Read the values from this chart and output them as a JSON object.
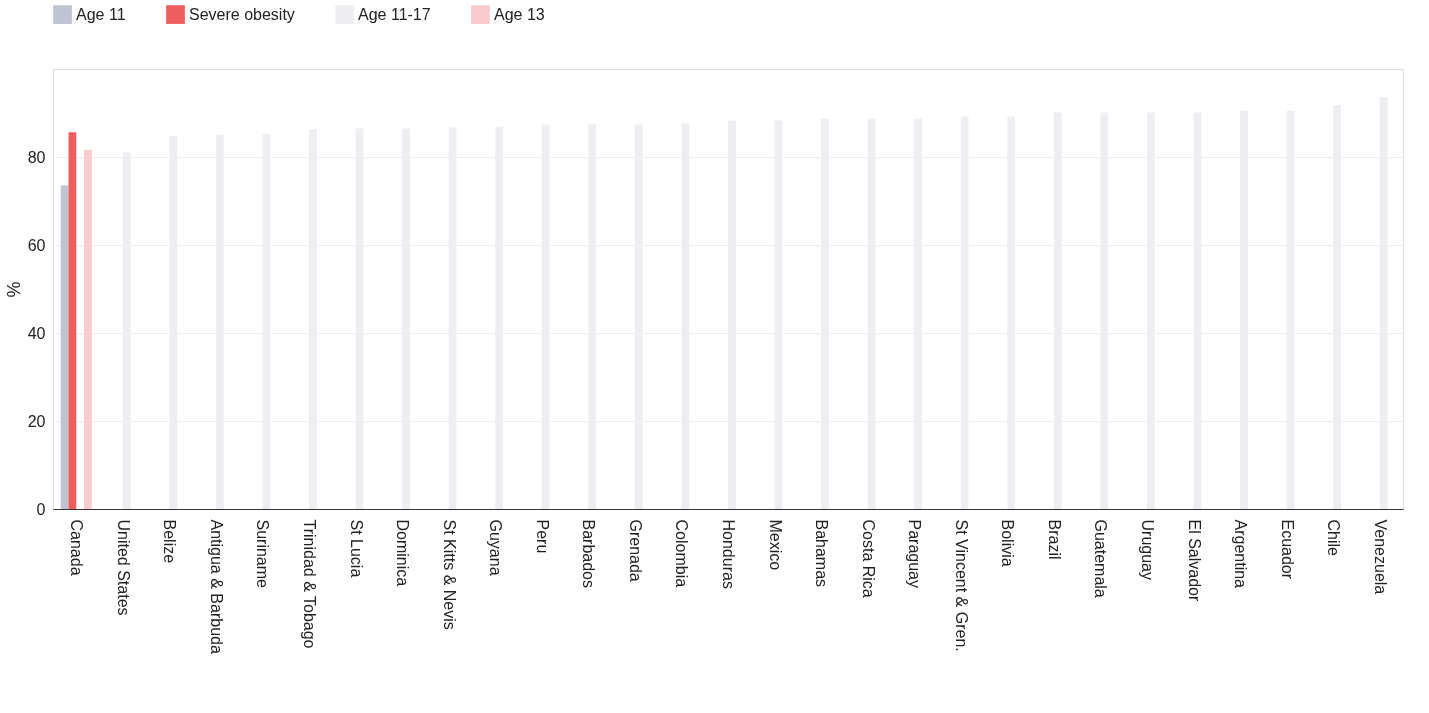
{
  "chart_data": {
    "type": "bar",
    "ylabel": "%",
    "categories": [
      "Canada",
      "United States",
      "Belize",
      "Antigua & Barbuda",
      "Suriname",
      "Trinidad & Tobago",
      "St Lucia",
      "Dominica",
      "St Kitts & Nevis",
      "Guyana",
      "Peru",
      "Barbados",
      "Grenada",
      "Colombia",
      "Honduras",
      "Mexico",
      "Bahamas",
      "Costa Rica",
      "Paraguay",
      "St Vincent & Gren.",
      "Bolivia",
      "Brazil",
      "Guatemala",
      "Uruguay",
      "El Salvador",
      "Argentina",
      "Ecuador",
      "Chile",
      "Venezuela"
    ],
    "series": [
      {
        "name": "Age 11",
        "color": "#c0c3d0",
        "values": [
          73.5,
          null,
          null,
          null,
          null,
          null,
          null,
          null,
          null,
          null,
          null,
          null,
          null,
          null,
          null,
          null,
          null,
          null,
          null,
          null,
          null,
          null,
          null,
          null,
          null,
          null,
          null,
          null,
          null
        ]
      },
      {
        "name": "Severe obesity",
        "color": "#ee5e5e",
        "values": [
          85.6,
          null,
          null,
          null,
          null,
          null,
          null,
          null,
          null,
          null,
          null,
          null,
          null,
          null,
          null,
          null,
          null,
          null,
          null,
          null,
          null,
          null,
          null,
          null,
          null,
          null,
          null,
          null,
          null
        ]
      },
      {
        "name": "Age 11-17",
        "color": "#ededf2",
        "values": [
          null,
          81.1,
          84.7,
          85.1,
          85.1,
          86.3,
          86.5,
          86.5,
          86.7,
          86.9,
          87.4,
          87.4,
          87.4,
          87.6,
          88.3,
          88.3,
          88.7,
          88.7,
          88.7,
          89.2,
          89.2,
          90.1,
          90.1,
          90.1,
          90.1,
          90.5,
          90.5,
          91.8,
          93.6
        ]
      },
      {
        "name": "Age 13",
        "color": "#f9cccc",
        "values": [
          81.6,
          null,
          null,
          null,
          null,
          null,
          null,
          null,
          null,
          null,
          null,
          null,
          null,
          null,
          null,
          null,
          null,
          null,
          null,
          null,
          null,
          null,
          null,
          null,
          null,
          null,
          null,
          null,
          null
        ]
      }
    ],
    "ylim": [
      0,
      100
    ],
    "yticks": [
      0,
      20,
      40,
      60,
      80
    ],
    "grid": "y",
    "legend": "top left"
  }
}
